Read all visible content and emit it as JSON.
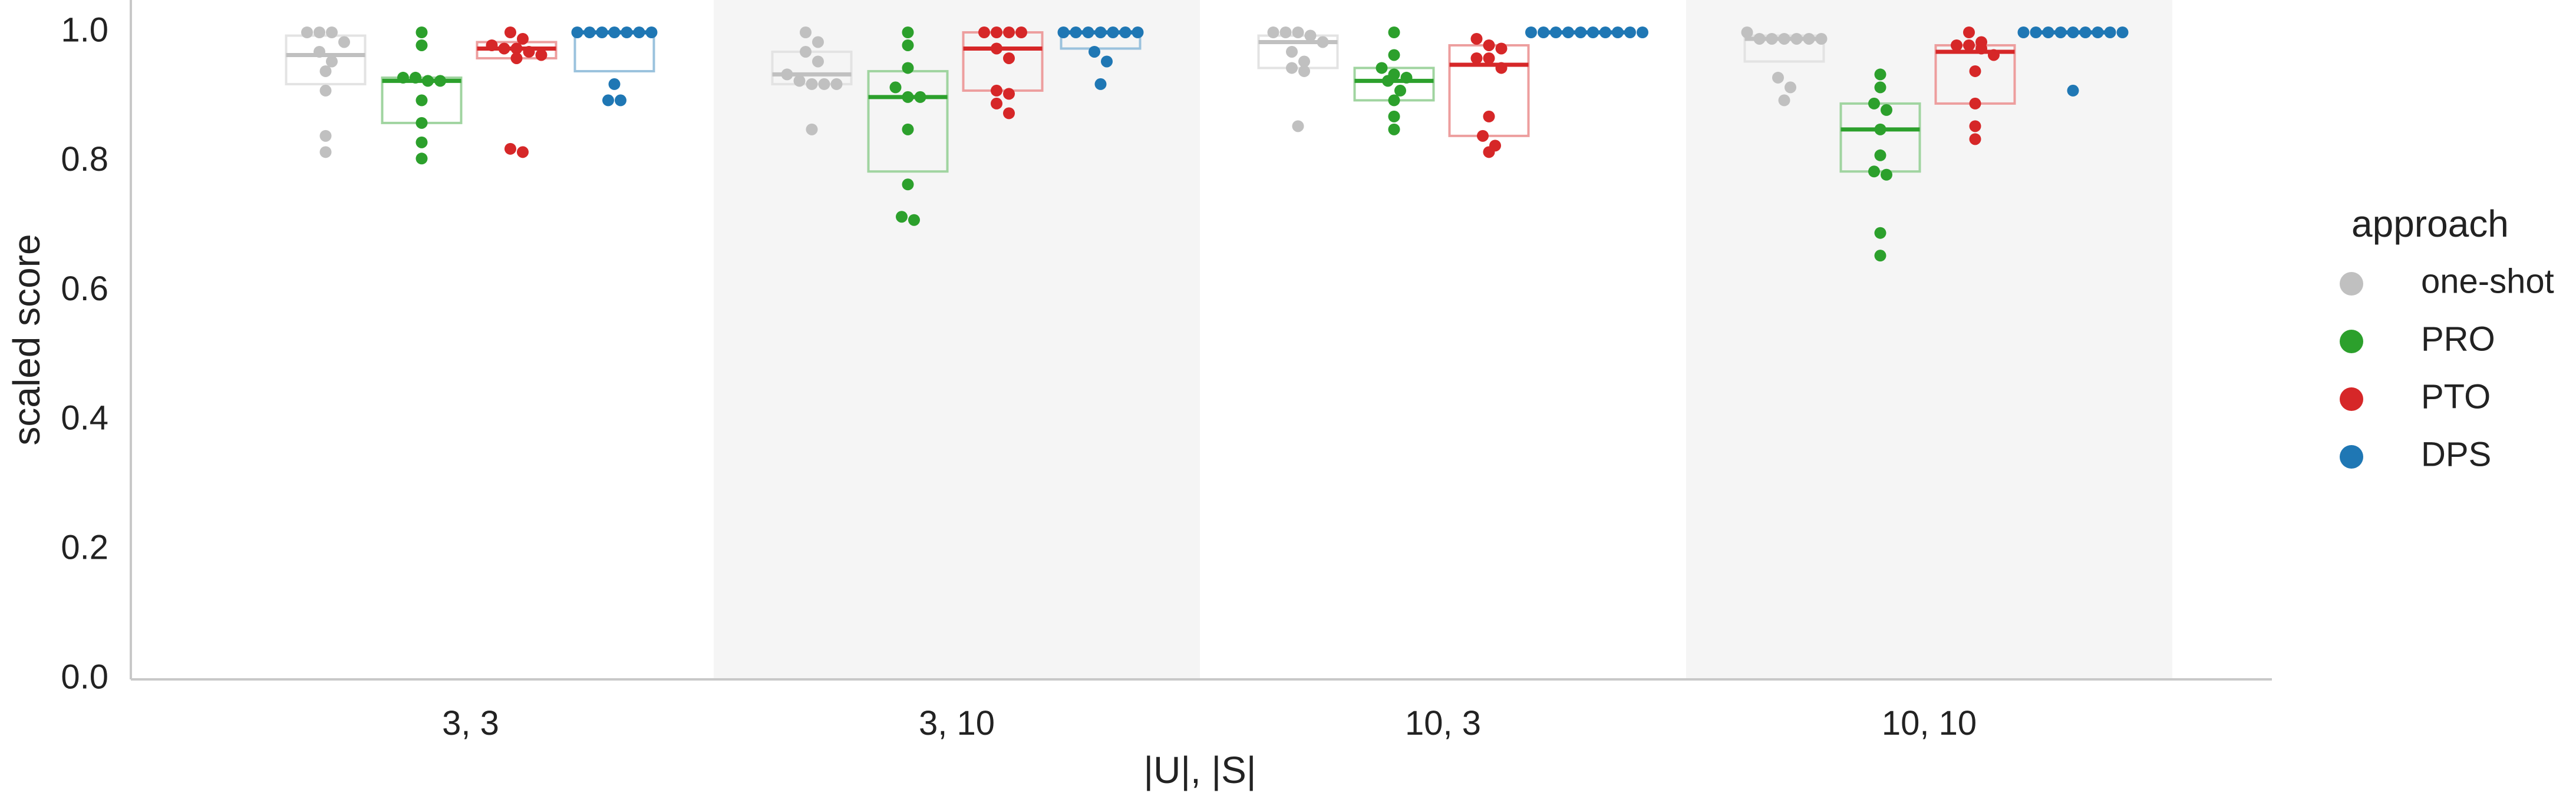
{
  "chart_data": {
    "type": "box-swarm",
    "title": "",
    "xlabel": "|U|, |S|",
    "ylabel": "scaled score",
    "ylim": [
      0,
      1.0
    ],
    "yticks": [
      "0.0",
      "0.2",
      "0.4",
      "0.6",
      "0.8",
      "1.0"
    ],
    "categories": [
      "3, 3",
      "3, 10",
      "10, 3",
      "10, 10"
    ],
    "shaded_categories": [
      false,
      true,
      false,
      true
    ],
    "grid": false,
    "legend": {
      "title": "approach",
      "placement": "right",
      "entries": [
        "one-shot",
        "PRO",
        "PTO",
        "DPS"
      ]
    },
    "series": [
      {
        "name": "one-shot",
        "color": "#c0c0c0",
        "boxes": [
          {
            "q1": 0.92,
            "median": 0.965,
            "q3": 0.995
          },
          {
            "q1": 0.92,
            "median": 0.935,
            "q3": 0.97
          },
          {
            "q1": 0.945,
            "median": 0.985,
            "q3": 0.995
          },
          {
            "q1": 0.955,
            "median": 0.99,
            "q3": 0.995
          }
        ],
        "points": [
          [
            1.0,
            1.0,
            1.0,
            0.985,
            0.97,
            0.955,
            0.94,
            0.91,
            0.84,
            0.815
          ],
          [
            1.0,
            0.985,
            0.97,
            0.955,
            0.935,
            0.925,
            0.92,
            0.92,
            0.92,
            0.85
          ],
          [
            1.0,
            1.0,
            1.0,
            0.995,
            0.985,
            0.97,
            0.955,
            0.945,
            0.94,
            0.855
          ],
          [
            1.0,
            0.99,
            0.99,
            0.99,
            0.99,
            0.99,
            0.99,
            0.93,
            0.915,
            0.895
          ]
        ]
      },
      {
        "name": "PRO",
        "color": "#2ca02c",
        "boxes": [
          {
            "q1": 0.86,
            "median": 0.925,
            "q3": 0.93
          },
          {
            "q1": 0.785,
            "median": 0.9,
            "q3": 0.94
          },
          {
            "q1": 0.895,
            "median": 0.925,
            "q3": 0.945
          },
          {
            "q1": 0.785,
            "median": 0.85,
            "q3": 0.89
          }
        ],
        "points": [
          [
            1.0,
            0.98,
            0.93,
            0.93,
            0.925,
            0.925,
            0.895,
            0.86,
            0.83,
            0.805
          ],
          [
            1.0,
            0.98,
            0.945,
            0.915,
            0.9,
            0.9,
            0.85,
            0.765,
            0.715,
            0.71
          ],
          [
            1.0,
            0.965,
            0.945,
            0.935,
            0.93,
            0.925,
            0.91,
            0.895,
            0.87,
            0.85
          ],
          [
            0.935,
            0.915,
            0.89,
            0.88,
            0.85,
            0.81,
            0.785,
            0.78,
            0.69,
            0.655
          ]
        ]
      },
      {
        "name": "PTO",
        "color": "#d62728",
        "boxes": [
          {
            "q1": 0.96,
            "median": 0.975,
            "q3": 0.985
          },
          {
            "q1": 0.91,
            "median": 0.975,
            "q3": 1.0
          },
          {
            "q1": 0.84,
            "median": 0.95,
            "q3": 0.98
          },
          {
            "q1": 0.89,
            "median": 0.97,
            "q3": 0.98
          }
        ],
        "points": [
          [
            1.0,
            0.99,
            0.98,
            0.975,
            0.975,
            0.97,
            0.965,
            0.96,
            0.82,
            0.815
          ],
          [
            1.0,
            1.0,
            1.0,
            1.0,
            0.975,
            0.96,
            0.91,
            0.905,
            0.89,
            0.875
          ],
          [
            0.99,
            0.98,
            0.975,
            0.96,
            0.96,
            0.945,
            0.87,
            0.84,
            0.825,
            0.815
          ],
          [
            1.0,
            0.985,
            0.98,
            0.98,
            0.975,
            0.965,
            0.94,
            0.89,
            0.855,
            0.835
          ]
        ]
      },
      {
        "name": "DPS",
        "color": "#1f77b4",
        "boxes": [
          {
            "q1": 0.94,
            "median": 1.0,
            "q3": 1.0
          },
          {
            "q1": 0.975,
            "median": 1.0,
            "q3": 1.0
          },
          {
            "q1": 1.0,
            "median": 1.0,
            "q3": 1.0
          },
          {
            "q1": 1.0,
            "median": 1.0,
            "q3": 1.0
          }
        ],
        "points": [
          [
            1.0,
            1.0,
            1.0,
            1.0,
            1.0,
            1.0,
            1.0,
            0.92,
            0.895,
            0.895
          ],
          [
            1.0,
            1.0,
            1.0,
            1.0,
            1.0,
            1.0,
            1.0,
            0.97,
            0.955,
            0.92
          ],
          [
            1.0,
            1.0,
            1.0,
            1.0,
            1.0,
            1.0,
            1.0,
            1.0,
            1.0,
            1.0
          ],
          [
            1.0,
            1.0,
            1.0,
            1.0,
            1.0,
            1.0,
            1.0,
            1.0,
            1.0,
            0.91
          ]
        ]
      }
    ]
  }
}
